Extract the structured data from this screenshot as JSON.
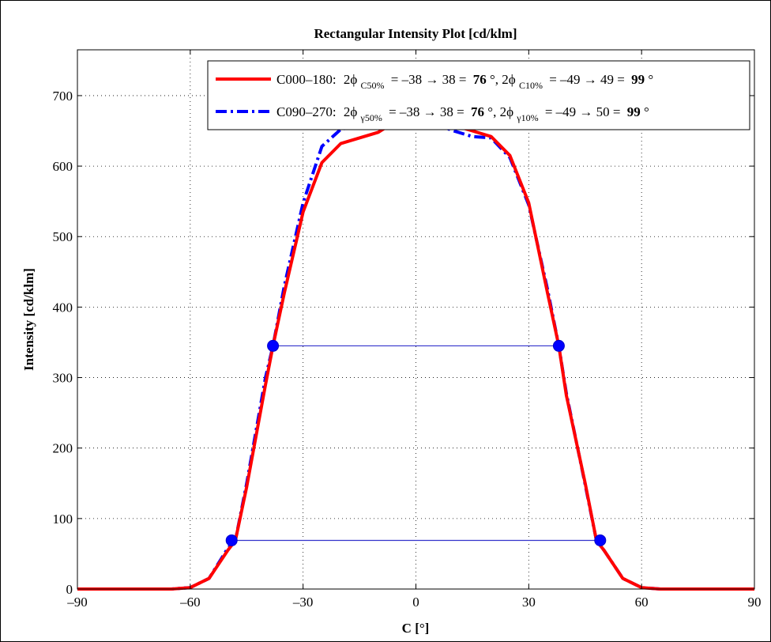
{
  "chart_data": {
    "type": "line",
    "title": "Rectangular Intensity Plot [cd/klm]",
    "xlabel": "C [°]",
    "ylabel": "Intensity [cd/klm]",
    "xlim": [
      -90,
      90
    ],
    "ylim": [
      0,
      765
    ],
    "xticks": [
      -90,
      -60,
      -30,
      0,
      30,
      60,
      90
    ],
    "xtick_labels": [
      "–90",
      "–60",
      "–30",
      "0",
      "30",
      "60",
      "90"
    ],
    "yticks": [
      0,
      100,
      200,
      300,
      400,
      500,
      600,
      700
    ],
    "ytick_labels": [
      "0",
      "100",
      "200",
      "300",
      "400",
      "500",
      "600",
      "700"
    ],
    "grid": true,
    "legend_position": "top-right",
    "series": [
      {
        "name": "C000–180",
        "color": "#ff0000",
        "style": "solid",
        "x": [
          -90,
          -85,
          -80,
          -75,
          -70,
          -65,
          -60,
          -55,
          -50,
          -48,
          -45,
          -40,
          -38,
          -35,
          -30,
          -25,
          -20,
          -15,
          -10,
          -5,
          0,
          5,
          10,
          15,
          20,
          25,
          30,
          35,
          38,
          40,
          45,
          48,
          50,
          55,
          60,
          65,
          70,
          75,
          80,
          85,
          90
        ],
        "y": [
          0,
          0,
          0,
          0,
          0,
          0,
          2,
          15,
          55,
          69,
          145,
          290,
          345,
          420,
          535,
          605,
          632,
          640,
          648,
          665,
          668,
          665,
          658,
          650,
          642,
          615,
          548,
          420,
          345,
          275,
          150,
          69,
          55,
          15,
          2,
          0,
          0,
          0,
          0,
          0,
          0
        ]
      },
      {
        "name": "C090–270",
        "color": "#0000ff",
        "style": "dashdot",
        "x": [
          -90,
          -85,
          -80,
          -75,
          -70,
          -65,
          -60,
          -55,
          -50,
          -48,
          -45,
          -40,
          -38,
          -35,
          -30,
          -25,
          -20,
          -15,
          -10,
          -5,
          0,
          5,
          10,
          15,
          20,
          25,
          30,
          35,
          38,
          40,
          45,
          48,
          50,
          55,
          60,
          65,
          70,
          75,
          80,
          85,
          90
        ],
        "y": [
          0,
          0,
          0,
          0,
          0,
          0,
          2,
          15,
          58,
          69,
          150,
          300,
          345,
          430,
          548,
          628,
          652,
          658,
          660,
          665,
          668,
          660,
          650,
          642,
          640,
          612,
          545,
          425,
          345,
          278,
          148,
          69,
          55,
          15,
          2,
          0,
          0,
          0,
          0,
          0,
          0
        ]
      }
    ],
    "markers": [
      {
        "x": -38,
        "y": 345
      },
      {
        "x": 38,
        "y": 345
      },
      {
        "x": -49,
        "y": 69
      },
      {
        "x": 49,
        "y": 69
      }
    ],
    "hlines": [
      {
        "x1": -38,
        "x2": 38,
        "y": 345,
        "color": "#3333cc"
      },
      {
        "x1": -49,
        "x2": 49,
        "y": 69,
        "color": "#3333cc"
      }
    ],
    "legend": [
      {
        "series_label": "C000–180:",
        "phi50_sym": "2ϕ",
        "phi50_sub": "C50%",
        "phi50_range": "= –38 → 38 =",
        "phi50_value": "76",
        "sep": "°, ",
        "phi10_sym": "2ϕ",
        "phi10_sub": "C10%",
        "phi10_range": "= –49 → 49 =",
        "phi10_value": "99",
        "deg": "°"
      },
      {
        "series_label": "C090–270:",
        "phi50_sym": "2ϕ",
        "phi50_sub": "γ50%",
        "phi50_range": "= –38 → 38 =",
        "phi50_value": "76",
        "sep": "°, ",
        "phi10_sym": "2ϕ",
        "phi10_sub": "γ10%",
        "phi10_range": "= –49 → 50 =",
        "phi10_value": "99",
        "deg": "°"
      }
    ]
  }
}
